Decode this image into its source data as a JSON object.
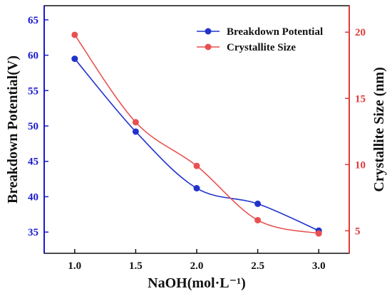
{
  "colors": {
    "left_axis": "#1a1acc",
    "right_axis": "#e03a3a",
    "frame": "#111111",
    "blue_series": "#2233cc",
    "red_series": "#e85050"
  },
  "chart_data": {
    "type": "scatter",
    "xlabel": "NaOH(mol·L⁻¹)",
    "ylabel_left": "Breakdown Potential(V)",
    "ylabel_right": "Crystallite Size (nm)",
    "xlim": [
      0.75,
      3.25
    ],
    "ylim_left": [
      32,
      67
    ],
    "ylim_right": [
      3.3,
      22
    ],
    "x_ticks": [
      1.0,
      1.5,
      2.0,
      2.5,
      3.0
    ],
    "x_tick_labels": [
      "1.0",
      "1.5",
      "2.0",
      "2.5",
      "3.0"
    ],
    "y_left_ticks": [
      35,
      40,
      45,
      50,
      55,
      60,
      65
    ],
    "y_left_tick_labels": [
      "35",
      "40",
      "45",
      "50",
      "55",
      "60",
      "65"
    ],
    "y_right_ticks": [
      5,
      10,
      15,
      20
    ],
    "y_right_tick_labels": [
      "5",
      "10",
      "15",
      "20"
    ],
    "legend_position": "top-right",
    "series": [
      {
        "name": "Breakdown Potential",
        "axis": "left",
        "x": [
          1.0,
          1.5,
          2.0,
          2.5,
          3.0
        ],
        "y": [
          59.5,
          49.2,
          41.2,
          39.0,
          35.2
        ],
        "fit": "smooth-curve"
      },
      {
        "name": "Crystallite Size",
        "axis": "right",
        "x": [
          1.0,
          1.5,
          2.0,
          2.5,
          3.0
        ],
        "y": [
          19.8,
          13.2,
          9.9,
          5.8,
          4.8
        ],
        "fit": "smooth-curve"
      }
    ]
  }
}
